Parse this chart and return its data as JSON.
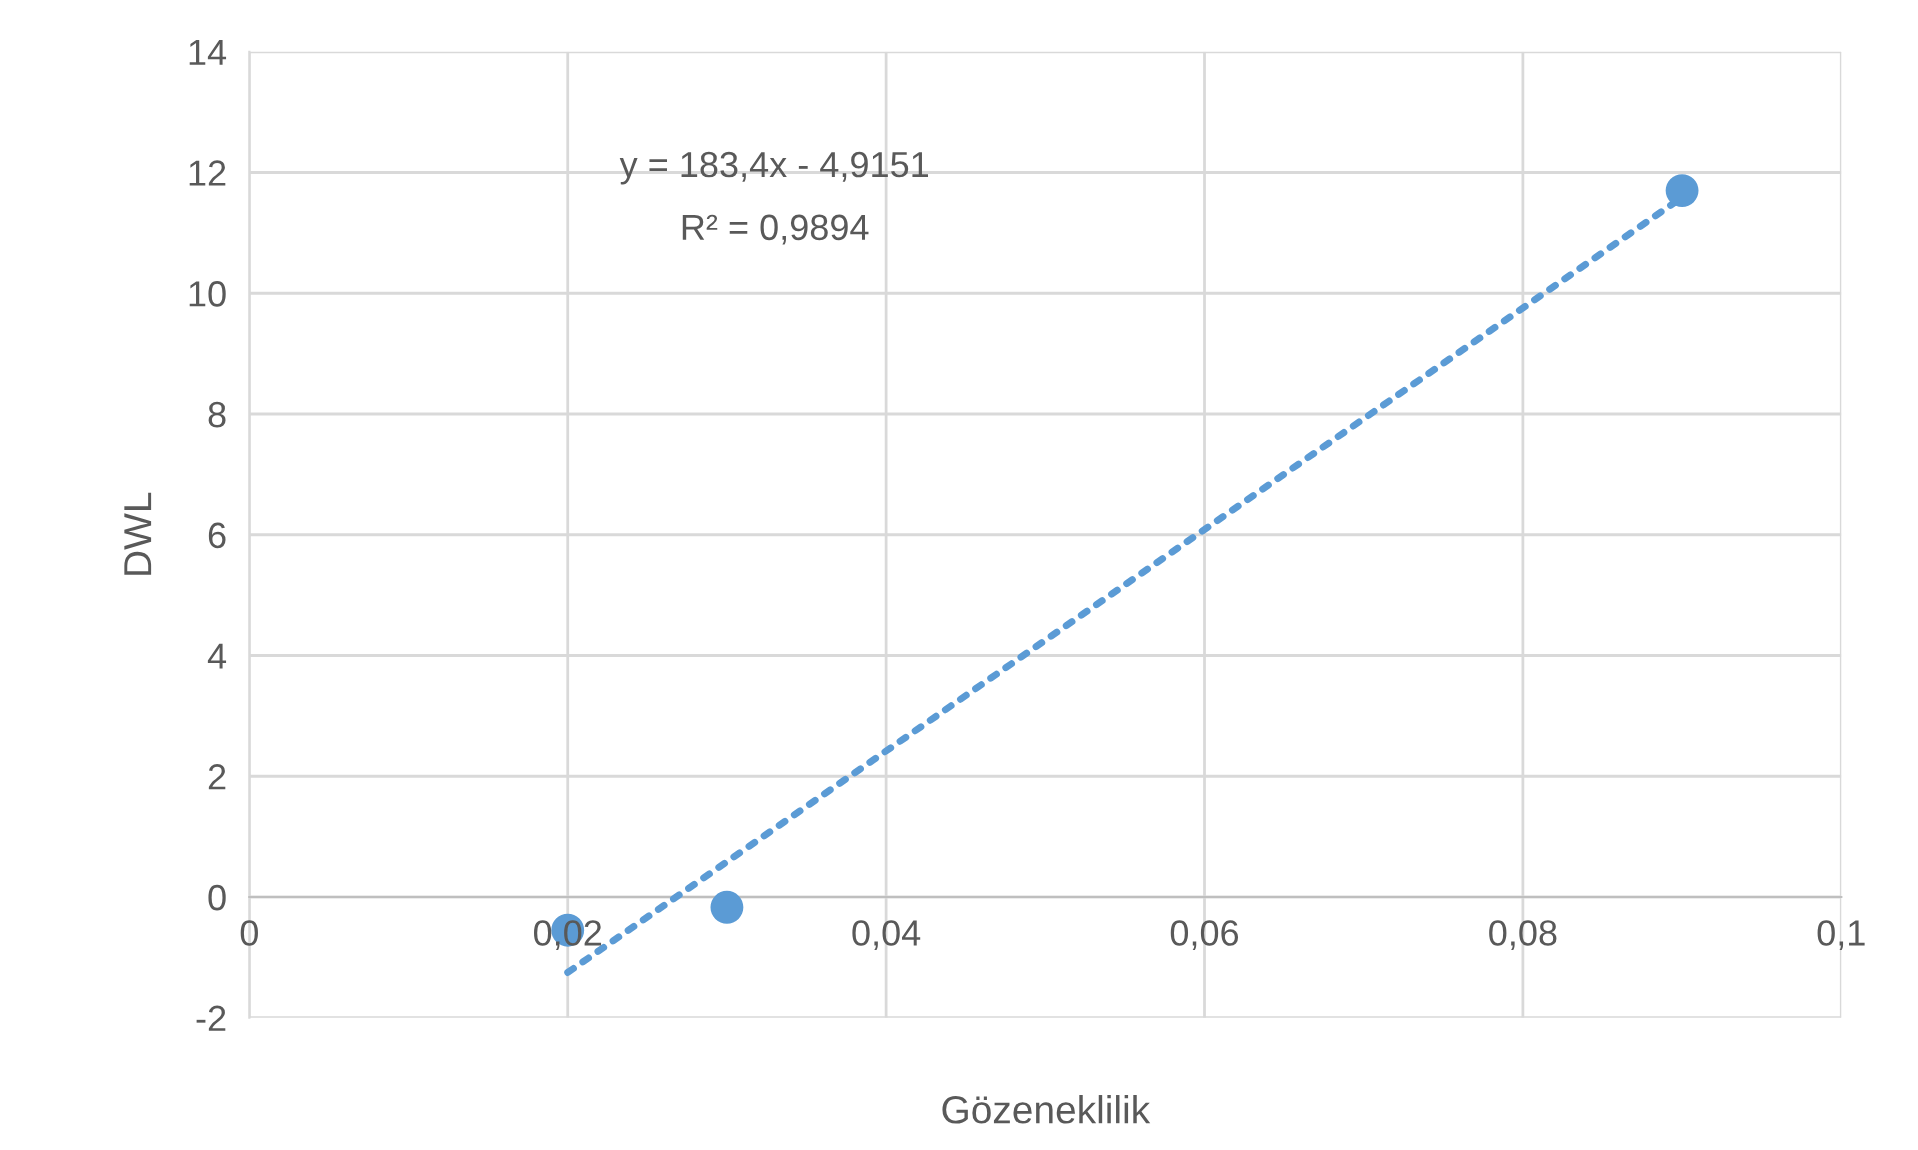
{
  "chart_data": {
    "type": "scatter",
    "xlabel": "Gözeneklilik",
    "ylabel": "DWL",
    "series": [
      {
        "color": "#5b9bd5",
        "marker": "circle",
        "x": [
          0.02,
          0.03,
          0.09
        ],
        "values": [
          -0.55,
          -0.17,
          11.7
        ]
      },
      {
        "type": "line",
        "color": "#5b9bd5",
        "marker": "none",
        "line_style": "dotted",
        "x": [
          0.02,
          0.09
        ],
        "values": [
          -1.25,
          11.59
        ]
      }
    ],
    "xlim": [
      0,
      0.1
    ],
    "ylim": [
      -2,
      14
    ],
    "xticks": [
      {
        "value": 0,
        "label": "0"
      },
      {
        "value": 0.02,
        "label": "0,02"
      },
      {
        "value": 0.04,
        "label": "0,04"
      },
      {
        "value": 0.06,
        "label": "0,06"
      },
      {
        "value": 0.08,
        "label": "0,08"
      },
      {
        "value": 0.1,
        "label": "0,1"
      }
    ],
    "yticks": [
      -2,
      0,
      2,
      4,
      6,
      8,
      10,
      12,
      14
    ],
    "grid": true,
    "annotations": [
      "y = 183,4x - 4,9151",
      "R² = 0,9894"
    ]
  }
}
